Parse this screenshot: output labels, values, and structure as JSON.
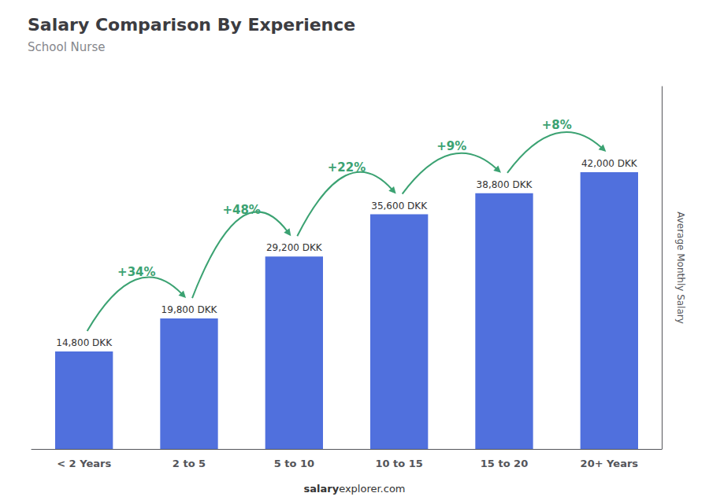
{
  "chart_data": {
    "type": "bar",
    "title": "Salary Comparison By Experience",
    "subtitle": "School Nurse",
    "categories": [
      "< 2 Years",
      "2 to 5",
      "5 to 10",
      "10 to 15",
      "15 to 20",
      "20+ Years"
    ],
    "values": [
      14800,
      19800,
      29200,
      35600,
      38800,
      42000
    ],
    "value_labels": [
      "14,800 DKK",
      "19,800 DKK",
      "29,200 DKK",
      "35,600 DKK",
      "38,800 DKK",
      "42,000 DKK"
    ],
    "data_labels": true,
    "annotations": [
      "+34%",
      "+48%",
      "+22%",
      "+9%",
      "+8%"
    ],
    "y_label": "Average Monthly Salary",
    "footer": [
      "salary",
      "explorer.com"
    ],
    "ylim": [
      0,
      55000
    ],
    "grid": false,
    "tick_labels": "x"
  }
}
